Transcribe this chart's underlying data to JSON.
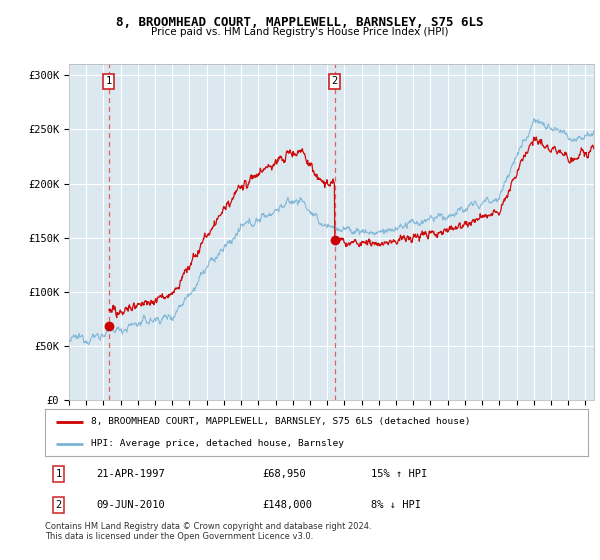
{
  "title": "8, BROOMHEAD COURT, MAPPLEWELL, BARNSLEY, S75 6LS",
  "subtitle": "Price paid vs. HM Land Registry's House Price Index (HPI)",
  "ylabel_ticks": [
    "£0",
    "£50K",
    "£100K",
    "£150K",
    "£200K",
    "£250K",
    "£300K"
  ],
  "ytick_values": [
    0,
    50000,
    100000,
    150000,
    200000,
    250000,
    300000
  ],
  "ylim": [
    0,
    310000
  ],
  "xlim_start": 1995.0,
  "xlim_end": 2025.5,
  "transaction1": {
    "date_num": 1997.31,
    "price": 68950,
    "label": "1"
  },
  "transaction2": {
    "date_num": 2010.44,
    "price": 148000,
    "label": "2"
  },
  "legend_line1": "8, BROOMHEAD COURT, MAPPLEWELL, BARNSLEY, S75 6LS (detached house)",
  "legend_line2": "HPI: Average price, detached house, Barnsley",
  "table_row1": [
    "1",
    "21-APR-1997",
    "£68,950",
    "15% ↑ HPI"
  ],
  "table_row2": [
    "2",
    "09-JUN-2010",
    "£148,000",
    "8% ↓ HPI"
  ],
  "footer": "Contains HM Land Registry data © Crown copyright and database right 2024.\nThis data is licensed under the Open Government Licence v3.0.",
  "bg_color": "#ffffff",
  "plot_bg_color": "#dce8f0",
  "grid_color": "#ffffff",
  "hpi_color": "#7ab4d4",
  "price_color": "#cc0000",
  "dashed_color": "#e06060"
}
